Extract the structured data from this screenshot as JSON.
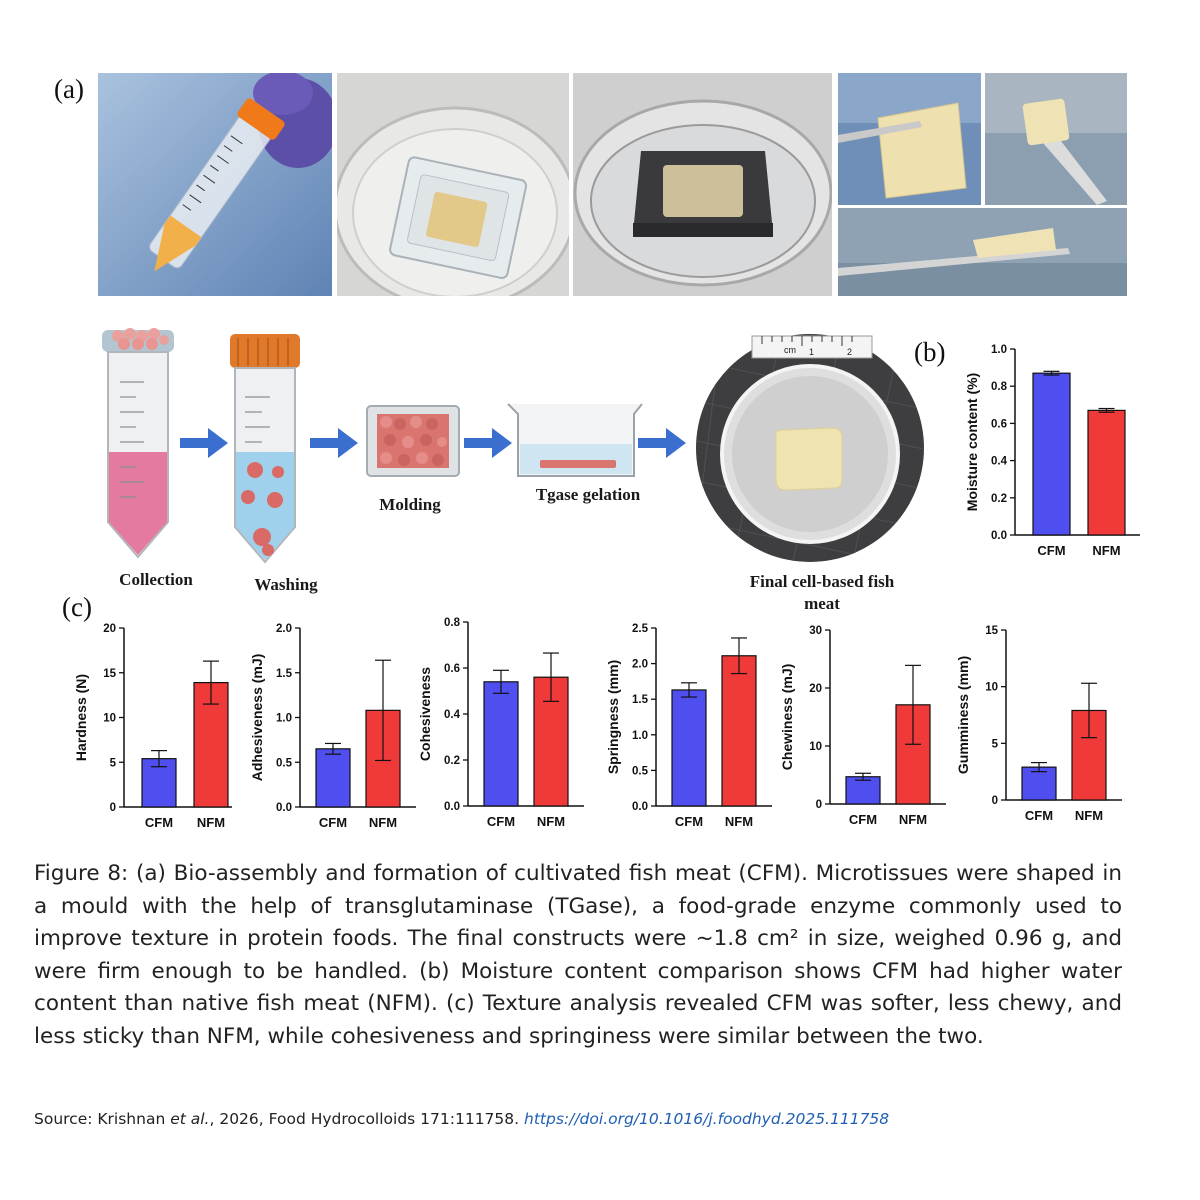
{
  "panels": {
    "a": "(a)",
    "b": "(b)",
    "c": "(c)"
  },
  "workflow": {
    "steps": [
      "Collection",
      "Washing",
      "Molding",
      "Tgase gelation"
    ],
    "final_line1": "Final cell-based fish",
    "final_line2": "meat",
    "ruler_unit": "cm",
    "ruler_ticks": [
      "1",
      "2"
    ]
  },
  "colors": {
    "cfm": "#4f4ff0",
    "nfm": "#f03a3a"
  },
  "chart_data": [
    {
      "type": "bar",
      "id": "moisture",
      "categories": [
        "CFM",
        "NFM"
      ],
      "values": [
        0.87,
        0.67
      ],
      "errors": [
        0.01,
        0.01
      ],
      "ylabel": "Moisture content (%)",
      "ylim": [
        0,
        1.0
      ],
      "yticks": [
        "0.0",
        "0.2",
        "0.4",
        "0.6",
        "0.8",
        "1.0"
      ]
    },
    {
      "type": "bar",
      "id": "hardness",
      "categories": [
        "CFM",
        "NFM"
      ],
      "values": [
        5.4,
        13.9
      ],
      "errors": [
        0.9,
        2.4
      ],
      "ylabel": "Hardness (N)",
      "ylim": [
        0,
        20
      ],
      "yticks": [
        "0",
        "5",
        "10",
        "15",
        "20"
      ]
    },
    {
      "type": "bar",
      "id": "adhesiveness",
      "categories": [
        "CFM",
        "NFM"
      ],
      "values": [
        0.65,
        1.08
      ],
      "errors": [
        0.06,
        0.56
      ],
      "ylabel": "Adhesiveness (mJ)",
      "ylim": [
        0,
        2.0
      ],
      "yticks": [
        "0.0",
        "0.5",
        "1.0",
        "1.5",
        "2.0"
      ]
    },
    {
      "type": "bar",
      "id": "cohesiveness",
      "categories": [
        "CFM",
        "NFM"
      ],
      "values": [
        0.54,
        0.56
      ],
      "errors": [
        0.05,
        0.105
      ],
      "ylabel": "Cohesiveness",
      "ylim": [
        0,
        0.8
      ],
      "yticks": [
        "0.0",
        "0.2",
        "0.4",
        "0.6",
        "0.8"
      ]
    },
    {
      "type": "bar",
      "id": "springness",
      "categories": [
        "CFM",
        "NFM"
      ],
      "values": [
        1.63,
        2.11
      ],
      "errors": [
        0.1,
        0.25
      ],
      "ylabel": "Springness (mm)",
      "ylim": [
        0,
        2.5
      ],
      "yticks": [
        "0.0",
        "0.5",
        "1.0",
        "1.5",
        "2.0",
        "2.5"
      ]
    },
    {
      "type": "bar",
      "id": "chewiness",
      "categories": [
        "CFM",
        "NFM"
      ],
      "values": [
        4.7,
        17.1
      ],
      "errors": [
        0.6,
        6.8
      ],
      "ylabel": "Chewiness (mJ)",
      "ylim": [
        0,
        30
      ],
      "yticks": [
        "0",
        "10",
        "20",
        "30"
      ]
    },
    {
      "type": "bar",
      "id": "gumminess",
      "categories": [
        "CFM",
        "NFM"
      ],
      "values": [
        2.9,
        7.9
      ],
      "errors": [
        0.4,
        2.4
      ],
      "ylabel": "Gumminess (mm)",
      "ylim": [
        0,
        15
      ],
      "yticks": [
        "0",
        "5",
        "10",
        "15"
      ]
    }
  ],
  "caption": "Figure 8: (a) Bio-assembly and formation of cultivated fish meat (CFM). Microtissues were shaped in a mould with the help of transglutaminase (TGase), a food-grade enzyme commonly used to improve texture in protein foods. The final constructs were ~1.8 cm² in size, weighed 0.96 g, and were firm enough to be handled. (b) Moisture content comparison shows CFM had higher water content than native fish meat (NFM). (c) Texture analysis revealed CFM was softer, less chewy, and less sticky than NFM, while cohesiveness and springiness were similar between the two.",
  "source": {
    "prefix": "Source: Krishnan ",
    "etal": "et al.",
    "middle": ", 2026, Food Hydrocolloids 171:111758. ",
    "link": "https://doi.org/10.1016/j.foodhyd.2025.111758"
  }
}
